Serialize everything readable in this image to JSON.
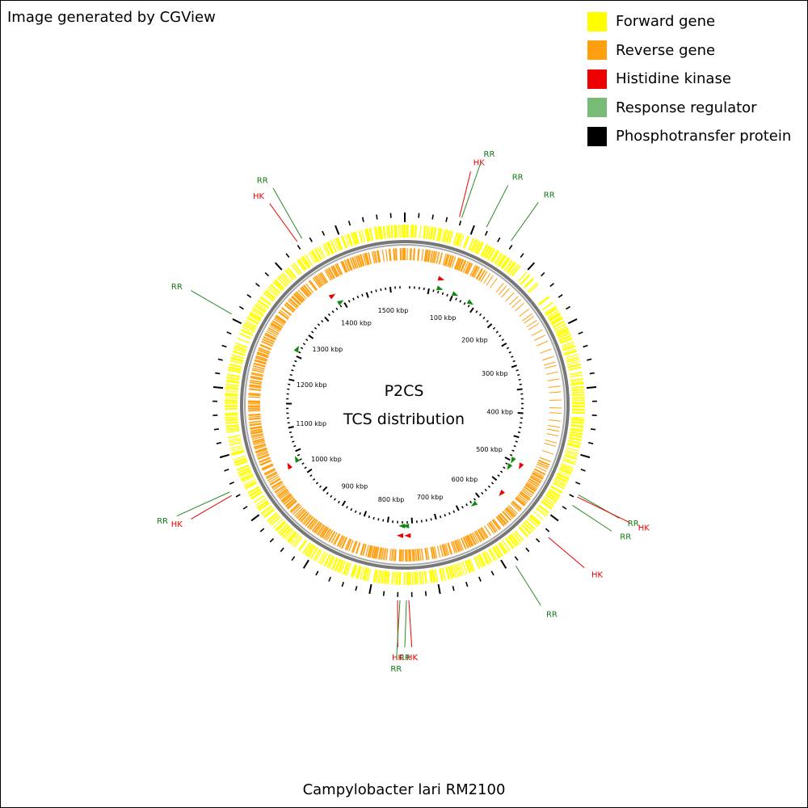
{
  "credit": "Image generated by CGView",
  "title_line1": "P2CS",
  "title_line2": "TCS distribution",
  "caption": "Campylobacter lari RM2100",
  "colors": {
    "forward": "#ffff00",
    "reverse": "#ff9f10",
    "hk": "#ee0000",
    "rr": "#77bb77",
    "rr_label": "#117711",
    "backbone": "#777777"
  },
  "legend": [
    {
      "label": "Forward gene",
      "color": "#ffff00"
    },
    {
      "label": "Reverse gene",
      "color": "#ff9f10"
    },
    {
      "label": "Histidine kinase",
      "color": "#ee0000"
    },
    {
      "label": "Response regulator",
      "color": "#77bb77"
    },
    {
      "label": "Phosphotransfer protein",
      "color": "#000000"
    }
  ],
  "genome": {
    "length_kbp": 1530,
    "tick_labels": [
      "100 kbp",
      "200 kbp",
      "300 kbp",
      "400 kbp",
      "500 kbp",
      "600 kbp",
      "700 kbp",
      "800 kbp",
      "900 kbp",
      "1000 kbp",
      "1100 kbp",
      "1200 kbp",
      "1300 kbp",
      "1400 kbp",
      "1500 kbp"
    ]
  },
  "features": [
    {
      "type": "HK",
      "label": "HK",
      "pos_kbp": 69
    },
    {
      "type": "RR",
      "label": "RR",
      "pos_kbp": 72
    },
    {
      "type": "RR",
      "label": "RR",
      "pos_kbp": 105
    },
    {
      "type": "RR",
      "label": "RR",
      "pos_kbp": 140
    },
    {
      "type": "RR",
      "label": "RR",
      "pos_kbp": 499
    },
    {
      "type": "HK",
      "label": "HK",
      "pos_kbp": 502
    },
    {
      "type": "RR",
      "label": "RR",
      "pos_kbp": 514
    },
    {
      "type": "HK",
      "label": "HK",
      "pos_kbp": 564
    },
    {
      "type": "RR",
      "label": "RR",
      "pos_kbp": 618
    },
    {
      "type": "HK",
      "label": "HK",
      "pos_kbp": 760
    },
    {
      "type": "RR",
      "label": "RR",
      "pos_kbp": 763
    },
    {
      "type": "HK",
      "label": "HK",
      "pos_kbp": 774
    },
    {
      "type": "RR",
      "label": "RR",
      "pos_kbp": 771
    },
    {
      "type": "HK",
      "label": "HK",
      "pos_kbp": 1030
    },
    {
      "type": "RR",
      "label": "RR",
      "pos_kbp": 1035
    },
    {
      "type": "RR",
      "label": "RR",
      "pos_kbp": 1265
    },
    {
      "type": "HK",
      "label": "HK",
      "pos_kbp": 1388
    },
    {
      "type": "RR",
      "label": "RR",
      "pos_kbp": 1395
    }
  ]
}
